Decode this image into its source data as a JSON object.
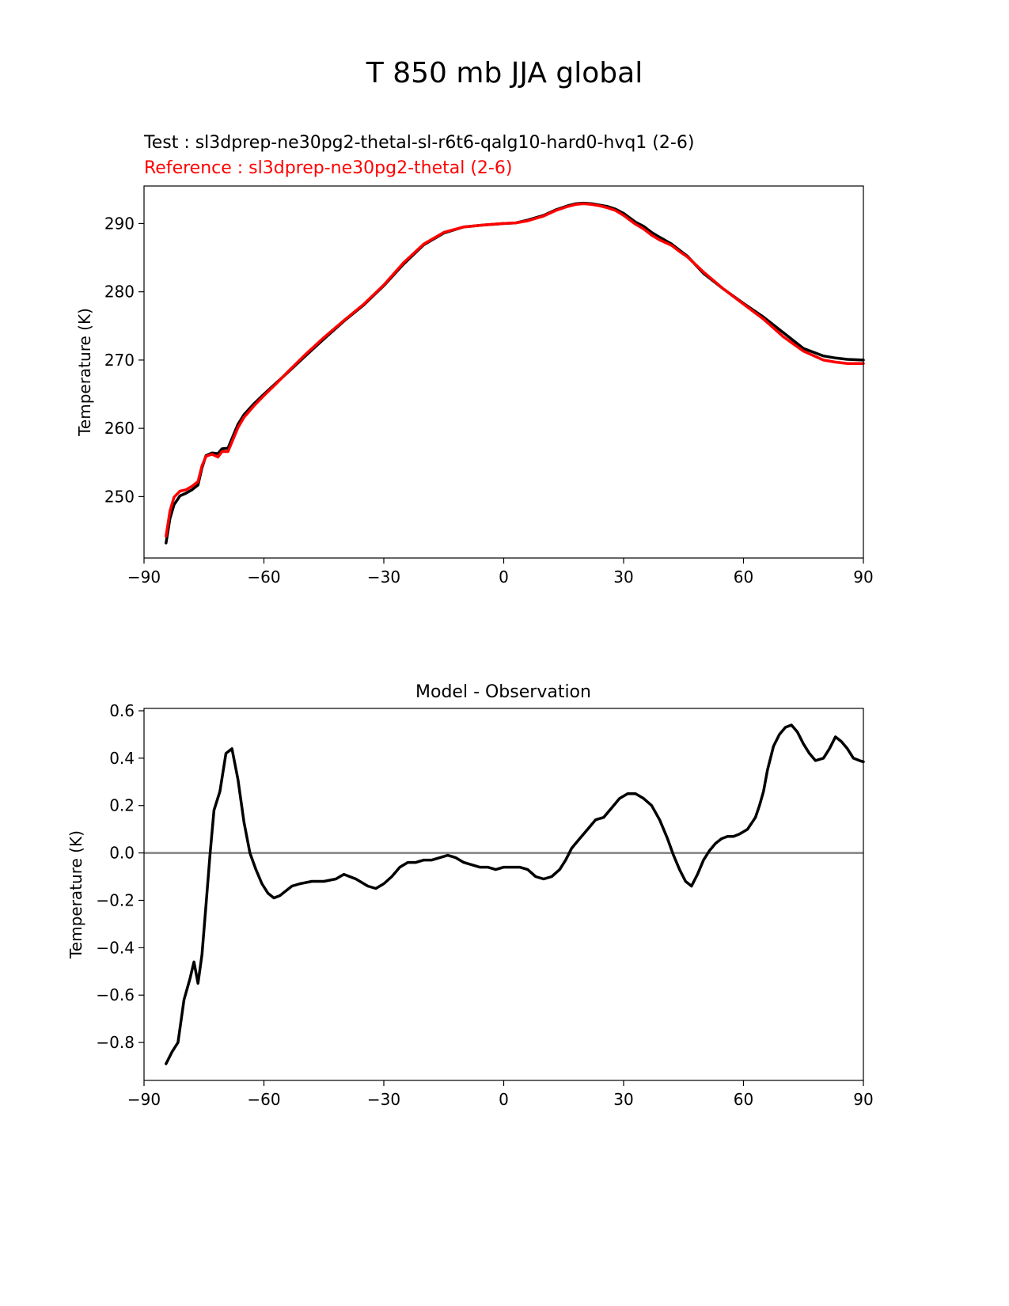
{
  "figure": {
    "title": "T 850 mb JJA global"
  },
  "chart_data": [
    {
      "type": "line",
      "test_label": "Test : sl3dprep-ne30pg2-thetal-sl-r6t6-qalg10-hard0-hvq1 (2-6)",
      "reference_label": "Reference : sl3dprep-ne30pg2-thetal (2-6)",
      "xlabel": "",
      "ylabel": "Temperature (K)",
      "xlim": [
        -90,
        90
      ],
      "ylim": [
        241,
        295.5
      ],
      "xticks": [
        -90,
        -60,
        -30,
        0,
        30,
        60,
        90
      ],
      "yticks": [
        250,
        260,
        270,
        280,
        290
      ],
      "grid": false,
      "colors": {
        "test": "#000000",
        "reference": "#ff0000"
      },
      "series": [
        {
          "name": "Test",
          "x": [
            -84.5,
            -83.5,
            -82.5,
            -81,
            -79.5,
            -78,
            -76.5,
            -75.5,
            -74.5,
            -73,
            -71.5,
            -70.5,
            -69,
            -68,
            -66.5,
            -65,
            -62.5,
            -60,
            -57,
            -54,
            -50,
            -45,
            -40,
            -35,
            -30,
            -25,
            -20,
            -15,
            -10,
            -5,
            0,
            3,
            6,
            10,
            13,
            16,
            18,
            20,
            22,
            24,
            26,
            28,
            30,
            33,
            35,
            37,
            39,
            42,
            44,
            46,
            50,
            55,
            60,
            65,
            70,
            75,
            80,
            83,
            86,
            90
          ],
          "y": [
            243.2,
            246.8,
            248.8,
            250.1,
            250.5,
            251.0,
            251.7,
            254.2,
            256.0,
            256.4,
            256.3,
            257.0,
            257.1,
            258.5,
            260.6,
            262.0,
            263.6,
            265.0,
            266.6,
            268.2,
            270.4,
            273.1,
            275.7,
            278.1,
            280.9,
            284.1,
            286.9,
            288.6,
            289.5,
            289.8,
            290.0,
            290.1,
            290.5,
            291.2,
            292.0,
            292.6,
            292.9,
            293.0,
            292.9,
            292.7,
            292.5,
            292.1,
            291.5,
            290.2,
            289.6,
            288.7,
            288.0,
            287.0,
            286.1,
            285.2,
            282.7,
            280.4,
            278.3,
            276.3,
            274.0,
            271.7,
            270.6,
            270.3,
            270.1,
            270.0
          ]
        },
        {
          "name": "Reference",
          "x": [
            -84.5,
            -83.5,
            -82.5,
            -81,
            -79.5,
            -78,
            -76.5,
            -75.5,
            -74.5,
            -73,
            -71.5,
            -70.5,
            -69,
            -68,
            -66.5,
            -65,
            -62.5,
            -60,
            -57,
            -54,
            -50,
            -45,
            -40,
            -35,
            -30,
            -25,
            -20,
            -15,
            -10,
            -5,
            0,
            3,
            6,
            10,
            13,
            16,
            18,
            20,
            22,
            24,
            26,
            28,
            30,
            33,
            35,
            37,
            39,
            42,
            44,
            46,
            50,
            55,
            60,
            65,
            70,
            75,
            80,
            83,
            86,
            90
          ],
          "y": [
            244.2,
            247.9,
            249.9,
            250.8,
            251.0,
            251.5,
            252.2,
            254.5,
            255.9,
            256.2,
            255.8,
            256.6,
            256.6,
            258.0,
            260.1,
            261.6,
            263.3,
            264.8,
            266.5,
            268.3,
            270.6,
            273.3,
            275.8,
            278.2,
            281.0,
            284.3,
            287.0,
            288.7,
            289.5,
            289.8,
            290.0,
            290.1,
            290.4,
            291.1,
            291.9,
            292.5,
            292.8,
            292.9,
            292.8,
            292.6,
            292.3,
            291.9,
            291.2,
            289.9,
            289.2,
            288.3,
            287.6,
            286.8,
            285.9,
            285.1,
            282.9,
            280.4,
            278.2,
            276.0,
            273.4,
            271.3,
            270.0,
            269.7,
            269.5,
            269.5
          ]
        }
      ]
    },
    {
      "type": "line",
      "title": "Model - Observation",
      "xlabel": "",
      "ylabel": "Temperature (K)",
      "xlim": [
        -90,
        90
      ],
      "ylim": [
        -0.96,
        0.61
      ],
      "xticks": [
        -90,
        -60,
        -30,
        0,
        30,
        60,
        90
      ],
      "yticks": [
        -0.8,
        -0.6,
        -0.4,
        -0.2,
        0.0,
        0.2,
        0.4,
        0.6
      ],
      "ytick_labels": [
        "−0.8",
        "−0.6",
        "−0.4",
        "−0.2",
        "0.0",
        "0.2",
        "0.4",
        "0.6"
      ],
      "grid": false,
      "zero_line": 0,
      "colors": {
        "line": "#000000",
        "zero": "#808080"
      },
      "series": [
        {
          "x": [
            -84.5,
            -83,
            -81.5,
            -80,
            -78.5,
            -77.5,
            -76.5,
            -75.5,
            -74.5,
            -73.5,
            -72.5,
            -71,
            -69.5,
            -68,
            -66.5,
            -65,
            -63.5,
            -62,
            -60.5,
            -59,
            -57.5,
            -56,
            -54.5,
            -53,
            -51,
            -48,
            -45,
            -42,
            -40,
            -37,
            -34,
            -32,
            -30,
            -28,
            -26,
            -24,
            -22,
            -20,
            -18,
            -16,
            -14,
            -12,
            -10,
            -8,
            -6,
            -4,
            -2,
            0,
            2,
            4,
            6,
            8,
            10,
            12,
            14,
            15.5,
            17,
            19,
            21,
            23,
            25,
            27,
            29,
            31,
            33,
            35,
            37,
            39,
            41,
            42.5,
            44,
            45.5,
            47,
            48.5,
            50,
            51.5,
            53,
            54.5,
            56,
            57.5,
            59,
            61,
            63,
            64,
            65,
            66,
            67.5,
            69,
            70.5,
            72,
            73.5,
            75,
            76.5,
            78,
            80,
            81.5,
            83,
            84.5,
            86,
            87.5,
            89,
            90
          ],
          "y": [
            -0.89,
            -0.84,
            -0.8,
            -0.62,
            -0.53,
            -0.46,
            -0.55,
            -0.43,
            -0.22,
            -0.01,
            0.18,
            0.26,
            0.42,
            0.44,
            0.31,
            0.13,
            0.0,
            -0.07,
            -0.13,
            -0.17,
            -0.19,
            -0.18,
            -0.16,
            -0.14,
            -0.13,
            -0.12,
            -0.12,
            -0.11,
            -0.09,
            -0.11,
            -0.14,
            -0.15,
            -0.13,
            -0.1,
            -0.06,
            -0.04,
            -0.04,
            -0.03,
            -0.03,
            -0.02,
            -0.01,
            -0.02,
            -0.04,
            -0.05,
            -0.06,
            -0.06,
            -0.07,
            -0.06,
            -0.06,
            -0.06,
            -0.07,
            -0.1,
            -0.11,
            -0.1,
            -0.07,
            -0.03,
            0.02,
            0.06,
            0.1,
            0.14,
            0.15,
            0.19,
            0.23,
            0.25,
            0.25,
            0.23,
            0.2,
            0.14,
            0.06,
            -0.01,
            -0.07,
            -0.12,
            -0.14,
            -0.09,
            -0.03,
            0.01,
            0.04,
            0.06,
            0.07,
            0.07,
            0.08,
            0.1,
            0.15,
            0.2,
            0.26,
            0.35,
            0.45,
            0.5,
            0.53,
            0.54,
            0.51,
            0.46,
            0.42,
            0.39,
            0.4,
            0.44,
            0.49,
            0.47,
            0.44,
            0.4,
            0.39,
            0.385
          ]
        }
      ]
    }
  ]
}
